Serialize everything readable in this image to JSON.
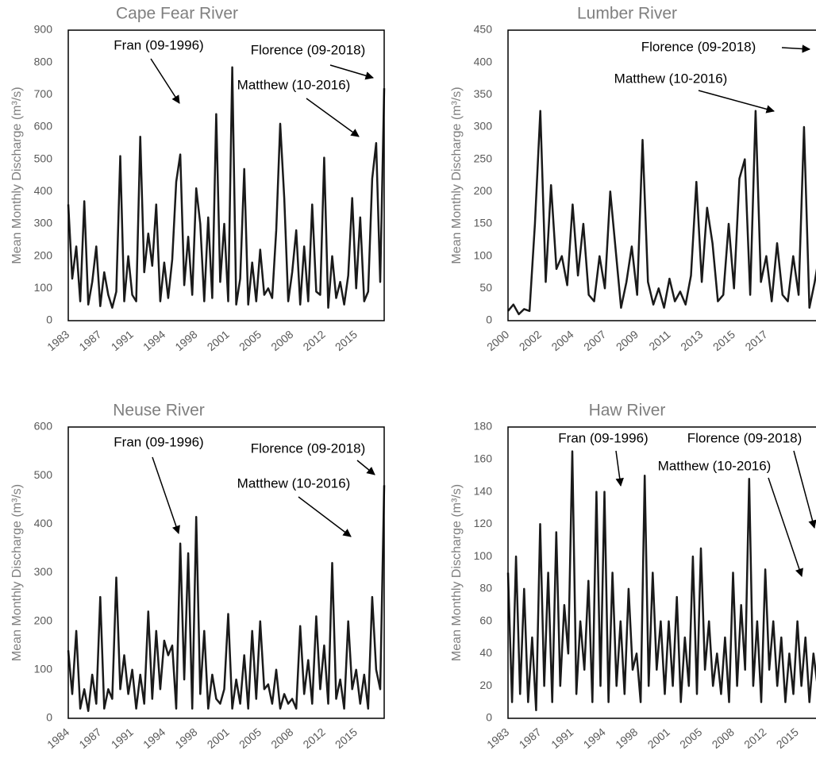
{
  "chart_data": [
    {
      "type": "line",
      "title": "Cape Fear River",
      "y_label": "Mean Monthly Discharge (m³/s)",
      "categories": [
        "1983",
        null,
        null,
        null,
        null,
        null,
        null,
        null,
        "1987",
        null,
        null,
        null,
        null,
        null,
        null,
        null,
        "1991",
        null,
        null,
        null,
        null,
        null,
        null,
        null,
        "1994",
        null,
        null,
        null,
        null,
        null,
        null,
        null,
        "1998",
        null,
        null,
        null,
        null,
        null,
        null,
        null,
        "2001",
        null,
        null,
        null,
        null,
        null,
        null,
        null,
        "2005",
        null,
        null,
        null,
        null,
        null,
        null,
        null,
        "2008",
        null,
        null,
        null,
        null,
        null,
        null,
        null,
        "2012",
        null,
        null,
        null,
        null,
        null,
        null,
        null,
        "2015",
        null,
        null,
        null,
        null,
        null,
        null,
        null
      ],
      "values": [
        360,
        130,
        230,
        60,
        370,
        50,
        120,
        230,
        45,
        150,
        80,
        40,
        90,
        510,
        60,
        200,
        80,
        60,
        570,
        150,
        270,
        170,
        360,
        60,
        180,
        70,
        190,
        430,
        515,
        110,
        260,
        80,
        410,
        300,
        60,
        320,
        70,
        640,
        120,
        300,
        60,
        785,
        50,
        130,
        470,
        50,
        180,
        60,
        220,
        80,
        100,
        70,
        280,
        610,
        380,
        60,
        150,
        280,
        50,
        230,
        60,
        360,
        90,
        80,
        505,
        40,
        200,
        70,
        120,
        50,
        140,
        380,
        100,
        320,
        60,
        90,
        440,
        550,
        120,
        720
      ],
      "color": "#1a1a1a",
      "ylim": [
        0,
        900
      ],
      "yticks": [
        0,
        100,
        200,
        300,
        400,
        500,
        600,
        700,
        800,
        900
      ],
      "annotations": [
        "Fran (09-1996)",
        "Florence (09-2018)",
        "Matthew (10-2016)"
      ]
    },
    {
      "type": "line",
      "title": "Lumber River",
      "y_label": "Mean Monthly Discharge (m³/s)",
      "categories": [
        "2000",
        null,
        null,
        null,
        null,
        null,
        "2002",
        null,
        null,
        null,
        null,
        null,
        "2004",
        null,
        null,
        null,
        null,
        null,
        "2007",
        null,
        null,
        null,
        null,
        null,
        "2009",
        null,
        null,
        null,
        null,
        null,
        "2011",
        null,
        null,
        null,
        null,
        null,
        "2013",
        null,
        null,
        null,
        null,
        null,
        "2015",
        null,
        null,
        null,
        null,
        null,
        "2017",
        null,
        null,
        null,
        null,
        null,
        null,
        null,
        null,
        null,
        null,
        null
      ],
      "values": [
        15,
        25,
        10,
        18,
        15,
        150,
        325,
        60,
        210,
        80,
        100,
        55,
        180,
        70,
        150,
        40,
        30,
        100,
        50,
        200,
        110,
        20,
        60,
        115,
        40,
        280,
        60,
        25,
        50,
        20,
        65,
        30,
        45,
        25,
        70,
        215,
        60,
        175,
        120,
        30,
        40,
        150,
        50,
        220,
        250,
        40,
        325,
        60,
        100,
        30,
        120,
        40,
        30,
        100,
        40,
        300,
        20,
        60,
        110,
        40
      ],
      "color": "#1a1a1a",
      "ylim": [
        0,
        450
      ],
      "yticks": [
        0,
        50,
        100,
        150,
        200,
        250,
        300,
        350,
        400,
        450
      ],
      "annotations": [
        "Florence (09-2018)",
        "Matthew (10-2016)"
      ]
    },
    {
      "type": "line",
      "title": "Neuse River",
      "y_label": "Mean Monthly Discharge (m³/s)",
      "categories": [
        "1984",
        null,
        null,
        null,
        null,
        null,
        null,
        null,
        "1987",
        null,
        null,
        null,
        null,
        null,
        null,
        null,
        "1991",
        null,
        null,
        null,
        null,
        null,
        null,
        null,
        "1994",
        null,
        null,
        null,
        null,
        null,
        null,
        null,
        "1998",
        null,
        null,
        null,
        null,
        null,
        null,
        null,
        "2001",
        null,
        null,
        null,
        null,
        null,
        null,
        null,
        "2005",
        null,
        null,
        null,
        null,
        null,
        null,
        null,
        "2008",
        null,
        null,
        null,
        null,
        null,
        null,
        null,
        "2012",
        null,
        null,
        null,
        null,
        null,
        null,
        null,
        "2015",
        null,
        null,
        null,
        null,
        null,
        null,
        null
      ],
      "values": [
        140,
        50,
        180,
        20,
        60,
        15,
        90,
        30,
        250,
        20,
        60,
        40,
        290,
        60,
        130,
        50,
        100,
        20,
        90,
        30,
        220,
        40,
        180,
        60,
        160,
        130,
        150,
        20,
        360,
        80,
        340,
        20,
        415,
        50,
        180,
        20,
        90,
        40,
        30,
        60,
        215,
        20,
        80,
        30,
        130,
        20,
        180,
        40,
        200,
        60,
        70,
        30,
        100,
        20,
        50,
        30,
        40,
        20,
        190,
        50,
        120,
        30,
        210,
        60,
        150,
        30,
        320,
        40,
        80,
        20,
        200,
        60,
        100,
        30,
        90,
        20,
        250,
        100,
        60,
        480
      ],
      "color": "#1a1a1a",
      "ylim": [
        0,
        600
      ],
      "yticks": [
        0,
        100,
        200,
        300,
        400,
        500,
        600
      ],
      "annotations": [
        "Fran (09-1996)",
        "Florence (09-2018)",
        "Matthew (10-2016)"
      ]
    },
    {
      "type": "line",
      "title": "Haw River",
      "y_label": "Mean Monthly Discharge (m³/s)",
      "categories": [
        "1983",
        null,
        null,
        null,
        null,
        null,
        null,
        null,
        "1987",
        null,
        null,
        null,
        null,
        null,
        null,
        null,
        "1991",
        null,
        null,
        null,
        null,
        null,
        null,
        null,
        "1994",
        null,
        null,
        null,
        null,
        null,
        null,
        null,
        "1998",
        null,
        null,
        null,
        null,
        null,
        null,
        null,
        "2001",
        null,
        null,
        null,
        null,
        null,
        null,
        null,
        "2005",
        null,
        null,
        null,
        null,
        null,
        null,
        null,
        "2008",
        null,
        null,
        null,
        null,
        null,
        null,
        null,
        "2012",
        null,
        null,
        null,
        null,
        null,
        null,
        null,
        "2015",
        null,
        null,
        null,
        null,
        null,
        null,
        null
      ],
      "values": [
        90,
        10,
        100,
        15,
        80,
        10,
        50,
        5,
        120,
        20,
        90,
        10,
        115,
        20,
        70,
        40,
        165,
        15,
        60,
        30,
        85,
        10,
        140,
        20,
        140,
        10,
        90,
        20,
        60,
        15,
        80,
        30,
        40,
        10,
        150,
        20,
        90,
        30,
        60,
        15,
        60,
        20,
        75,
        10,
        50,
        20,
        100,
        15,
        105,
        30,
        60,
        20,
        40,
        15,
        50,
        10,
        90,
        20,
        70,
        30,
        148,
        20,
        60,
        10,
        92,
        30,
        60,
        20,
        50,
        10,
        40,
        15,
        60,
        20,
        50,
        10,
        40,
        20,
        30,
        60
      ],
      "color": "#1a1a1a",
      "ylim": [
        0,
        180
      ],
      "yticks": [
        0,
        20,
        40,
        60,
        80,
        100,
        120,
        140,
        160,
        180
      ],
      "annotations": [
        "Fran (09-1996)",
        "Florence (09-2018)",
        "Matthew (10-2016)"
      ]
    }
  ]
}
